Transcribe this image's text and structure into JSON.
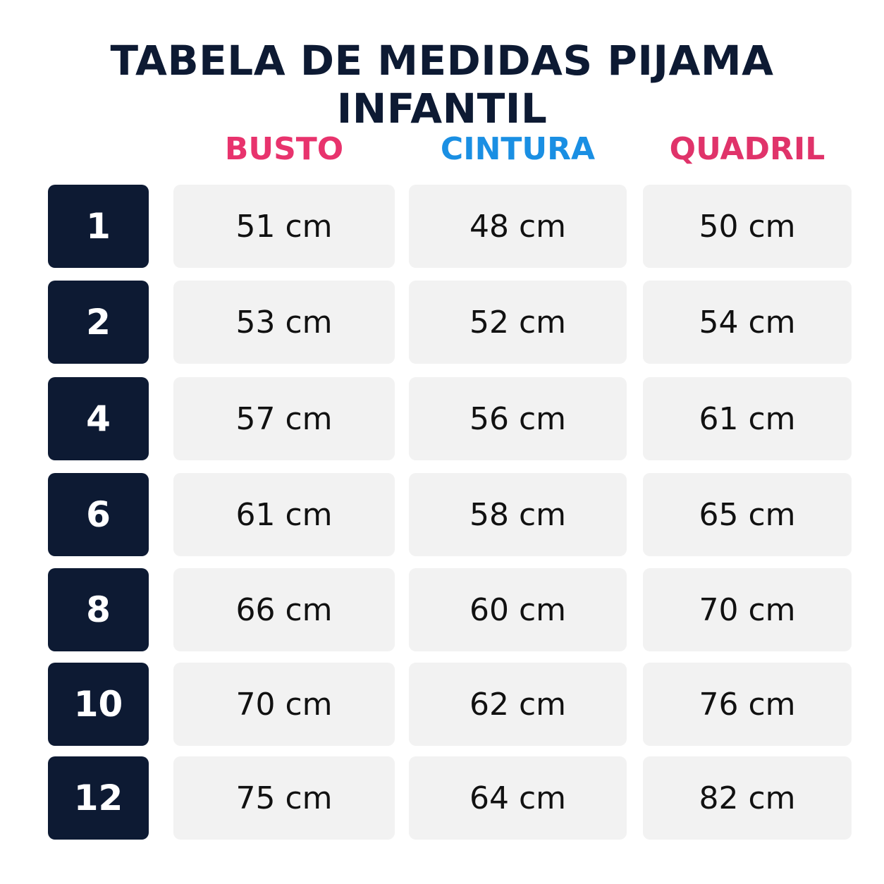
{
  "header": {
    "title": "TABELA DE MEDIDAS PIJAMA INFANTIL"
  },
  "table": {
    "columns": [
      {
        "label": "BUSTO",
        "color": "#e8336d"
      },
      {
        "label": "CINTURA",
        "color": "#1a8fe3"
      },
      {
        "label": "QUADRIL",
        "color": "#e0336a"
      }
    ],
    "rows": [
      {
        "size": "1",
        "cells": [
          "51 cm",
          "48 cm",
          "50 cm"
        ]
      },
      {
        "size": "2",
        "cells": [
          "53 cm",
          "52 cm",
          "54 cm"
        ]
      },
      {
        "size": "4",
        "cells": [
          "57 cm",
          "56 cm",
          "61 cm"
        ]
      },
      {
        "size": "6",
        "cells": [
          "61 cm",
          "58 cm",
          "65 cm"
        ]
      },
      {
        "size": "8",
        "cells": [
          "66 cm",
          "60 cm",
          "70 cm"
        ]
      },
      {
        "size": "10",
        "cells": [
          "70 cm",
          "62 cm",
          "76 cm"
        ]
      },
      {
        "size": "12",
        "cells": [
          "75 cm",
          "64 cm",
          "82 cm"
        ]
      }
    ]
  }
}
